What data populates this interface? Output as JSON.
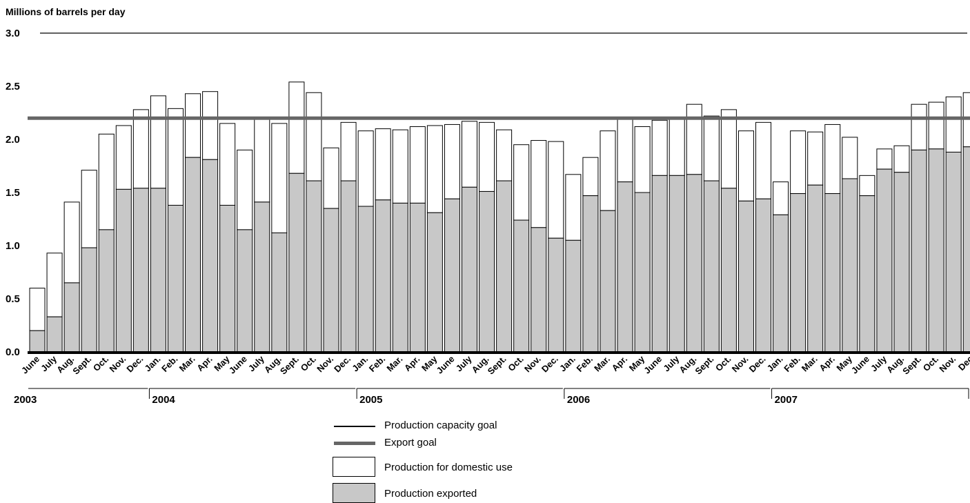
{
  "chart_data": {
    "type": "bar",
    "ylabel": "Millions of barrels per day",
    "ylim": [
      0,
      3.0
    ],
    "yticks": [
      "0.0",
      "0.5",
      "1.0",
      "1.5",
      "2.0",
      "2.5",
      "3.0"
    ],
    "stacked": true,
    "reference_lines": [
      {
        "name": "Production capacity goal",
        "value": 3.0
      },
      {
        "name": "Export goal",
        "value": 2.2
      }
    ],
    "categories": [
      "June",
      "July",
      "Aug.",
      "Sept.",
      "Oct.",
      "Nov.",
      "Dec.",
      "Jan.",
      "Feb.",
      "Mar.",
      "Apr.",
      "May",
      "June",
      "July",
      "Aug.",
      "Sept.",
      "Oct.",
      "Nov.",
      "Dec.",
      "Jan.",
      "Feb.",
      "Mar.",
      "Apr.",
      "May",
      "June",
      "July",
      "Aug.",
      "Sept.",
      "Oct.",
      "Nov.",
      "Dec.",
      "Jan.",
      "Feb.",
      "Mar.",
      "Apr.",
      "May",
      "June",
      "July",
      "Aug.",
      "Sept.",
      "Oct.",
      "Nov.",
      "Dec.",
      "Jan.",
      "Feb.",
      "Mar.",
      "Apr.",
      "May",
      "June",
      "July",
      "Aug.",
      "Sept.",
      "Oct.",
      "Nov.",
      "Dec"
    ],
    "years": [
      {
        "label": "2003",
        "start": 0,
        "count": 7
      },
      {
        "label": "2004",
        "start": 7,
        "count": 12
      },
      {
        "label": "2005",
        "start": 19,
        "count": 12
      },
      {
        "label": "2006",
        "start": 31,
        "count": 12
      },
      {
        "label": "2007",
        "start": 43,
        "count": 12
      }
    ],
    "series": [
      {
        "name": "Production exported",
        "color": "#c8c8c8",
        "values": [
          0.2,
          0.33,
          0.65,
          0.98,
          1.15,
          1.53,
          1.54,
          1.54,
          1.38,
          1.83,
          1.81,
          1.38,
          1.15,
          1.41,
          1.12,
          1.68,
          1.61,
          1.35,
          1.61,
          1.37,
          1.43,
          1.4,
          1.4,
          1.31,
          1.44,
          1.55,
          1.51,
          1.61,
          1.24,
          1.17,
          1.07,
          1.05,
          1.47,
          1.33,
          1.6,
          1.5,
          1.66,
          1.66,
          1.67,
          1.61,
          1.54,
          1.42,
          1.44,
          1.29,
          1.49,
          1.57,
          1.49,
          1.63,
          1.47,
          1.72,
          1.69,
          1.9,
          1.91,
          1.88,
          1.93
        ]
      },
      {
        "name": "Production for domestic use",
        "color": "#ffffff",
        "values": [
          0.4,
          0.6,
          0.76,
          0.73,
          0.9,
          0.6,
          0.74,
          0.87,
          0.91,
          0.6,
          0.64,
          0.77,
          0.75,
          0.8,
          1.03,
          0.86,
          0.83,
          0.57,
          0.55,
          0.71,
          0.67,
          0.69,
          0.72,
          0.82,
          0.7,
          0.62,
          0.65,
          0.48,
          0.71,
          0.82,
          0.91,
          0.62,
          0.36,
          0.75,
          0.6,
          0.62,
          0.52,
          0.54,
          0.66,
          0.61,
          0.74,
          0.66,
          0.72,
          0.31,
          0.59,
          0.5,
          0.65,
          0.39,
          0.19,
          0.19,
          0.25,
          0.43,
          0.44,
          0.52,
          0.51
        ]
      }
    ],
    "legend": [
      {
        "label": "Production capacity goal",
        "symbol": "thin-line"
      },
      {
        "label": "Export goal",
        "symbol": "thick-line"
      },
      {
        "label": "Production for domestic use",
        "symbol": "white-box"
      },
      {
        "label": "Production exported",
        "symbol": "gray-box"
      }
    ],
    "colors": {
      "exported": "#c8c8c8",
      "domestic": "#ffffff",
      "export_goal": "#666666",
      "axis": "#000000"
    }
  }
}
